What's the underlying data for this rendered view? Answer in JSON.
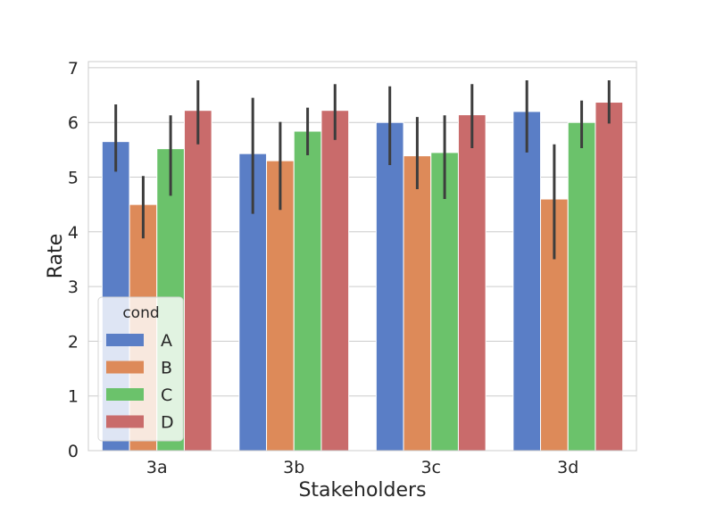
{
  "chart_data": {
    "type": "bar",
    "title": "",
    "xlabel": "Stakeholders",
    "ylabel": "Rate",
    "categories": [
      "3a",
      "3b",
      "3c",
      "3d"
    ],
    "ylim": [
      0,
      7
    ],
    "yticks": [
      0,
      1,
      2,
      3,
      4,
      5,
      6,
      7
    ],
    "grid": "horizontal",
    "legend": {
      "title": "cond",
      "placement": "lower-left"
    },
    "series": [
      {
        "name": "A",
        "color": "#5a7ec6",
        "values": [
          5.65,
          5.43,
          6.0,
          6.2
        ],
        "ci_low": [
          5.1,
          4.33,
          5.22,
          5.45
        ],
        "ci_high": [
          6.33,
          6.45,
          6.66,
          6.77
        ]
      },
      {
        "name": "B",
        "color": "#dd8a59",
        "values": [
          4.5,
          5.3,
          5.39,
          4.6
        ],
        "ci_low": [
          3.88,
          4.4,
          4.78,
          3.5
        ],
        "ci_high": [
          5.02,
          6.01,
          6.1,
          5.6
        ]
      },
      {
        "name": "C",
        "color": "#6bc26b",
        "values": [
          5.52,
          5.84,
          5.45,
          6.0
        ],
        "ci_low": [
          4.66,
          5.4,
          4.6,
          5.53
        ],
        "ci_high": [
          6.13,
          6.27,
          6.13,
          6.4
        ]
      },
      {
        "name": "D",
        "color": "#c96b6b",
        "values": [
          6.22,
          6.22,
          6.14,
          6.37
        ],
        "ci_low": [
          5.6,
          5.68,
          5.53,
          5.98
        ],
        "ci_high": [
          6.77,
          6.7,
          6.7,
          6.77
        ]
      }
    ]
  }
}
